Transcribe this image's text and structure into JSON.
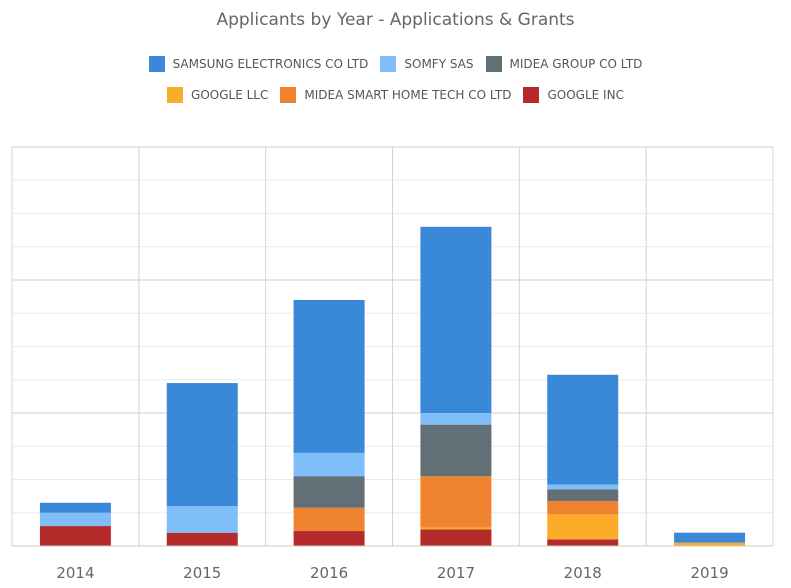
{
  "chart_data": {
    "type": "bar",
    "stacked": true,
    "title": "Applicants by Year - Applications & Grants",
    "categories": [
      "2014",
      "2015",
      "2016",
      "2017",
      "2018",
      "2019"
    ],
    "ylim": [
      0,
      12
    ],
    "grid": true,
    "legend_position": "top",
    "series": [
      {
        "name": "GOOGLE INC",
        "color": "#b52a2a",
        "values": [
          0.6,
          0.4,
          0.45,
          0.5,
          0.2,
          0
        ]
      },
      {
        "name": "GOOGLE LLC",
        "color": "#fbad2a",
        "values": [
          0,
          0,
          0,
          0.05,
          0.75,
          0.1
        ]
      },
      {
        "name": "MIDEA SMART HOME TECH CO LTD",
        "color": "#f08330",
        "values": [
          0,
          0,
          0.7,
          1.55,
          0.4,
          0
        ]
      },
      {
        "name": "MIDEA GROUP CO LTD",
        "color": "#636f76",
        "values": [
          0,
          0,
          0.95,
          1.55,
          0.35,
          0
        ]
      },
      {
        "name": "SOMFY SAS",
        "color": "#7fbef8",
        "values": [
          0.4,
          0.8,
          0.7,
          0.35,
          0.15,
          0
        ]
      },
      {
        "name": "SAMSUNG ELECTRONICS CO LTD",
        "color": "#3a88d8",
        "values": [
          0.3,
          3.7,
          4.6,
          5.6,
          3.3,
          0.3
        ]
      }
    ]
  },
  "legend_rows": [
    [
      {
        "name": "SAMSUNG ELECTRONICS CO LTD",
        "color": "#3a88d8"
      },
      {
        "name": "SOMFY SAS",
        "color": "#7fbef8"
      },
      {
        "name": "MIDEA GROUP CO LTD",
        "color": "#636f76"
      }
    ],
    [
      {
        "name": "GOOGLE LLC",
        "color": "#fbad2a"
      },
      {
        "name": "MIDEA SMART HOME TECH CO LTD",
        "color": "#f08330"
      },
      {
        "name": "GOOGLE INC",
        "color": "#b52a2a"
      }
    ]
  ]
}
